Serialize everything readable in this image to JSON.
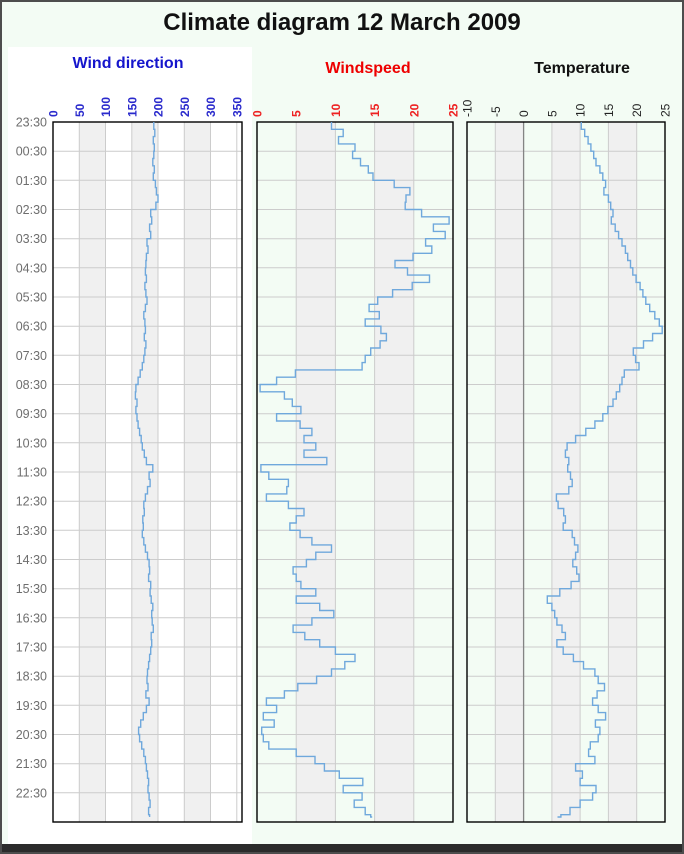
{
  "title": "Climate diagram 12 March 2009",
  "time_axis": {
    "orientation": "vertical-downward",
    "labels": [
      "23:30",
      "00:30",
      "01:30",
      "02:30",
      "03:30",
      "04:30",
      "05:30",
      "06:30",
      "07:30",
      "08:30",
      "09:30",
      "10:30",
      "11:30",
      "12:30",
      "13:30",
      "14:30",
      "15:30",
      "16:30",
      "17:30",
      "18:30",
      "19:30",
      "20:30",
      "21:30",
      "22:30"
    ],
    "values_interval_minutes": 15
  },
  "colors": {
    "line": "#6fa8dc",
    "grid": "#cccccc",
    "band": "#f0f0f0",
    "zero_line": "#848484",
    "time_label": "#6e6e6e",
    "background": "#f3fcf4",
    "panel_backdrop": "#ffffff",
    "frame_border": "#4d4d4d",
    "bottom_bar": "#2b2b2b",
    "plot_border": "#000000"
  },
  "chart_data": [
    {
      "type": "line",
      "style": "step",
      "title": "Wind direction",
      "title_color": "#1515cc",
      "tick_color": "#2a2acc",
      "tick_bold": true,
      "axis_min": 0,
      "axis_max": 360,
      "ticks": [
        0,
        50,
        100,
        150,
        200,
        250,
        300,
        350
      ],
      "values": [
        192,
        194,
        191,
        193,
        192,
        190,
        193,
        191,
        195,
        197,
        200,
        196,
        186,
        188,
        184,
        186,
        179,
        181,
        178,
        177,
        176,
        178,
        175,
        177,
        179,
        176,
        173,
        175,
        176,
        174,
        177,
        175,
        173,
        170,
        166,
        162,
        158,
        157,
        160,
        158,
        160,
        162,
        165,
        168,
        170,
        174,
        178,
        190,
        183,
        185,
        180,
        176,
        173,
        174,
        171,
        172,
        170,
        173,
        176,
        180,
        183,
        184,
        182,
        186,
        185,
        187,
        190,
        188,
        189,
        191,
        187,
        188,
        186,
        184,
        182,
        180,
        179,
        181,
        177,
        183,
        178,
        172,
        167,
        163,
        165,
        169,
        173,
        176,
        178,
        180,
        182,
        181,
        183,
        185,
        182,
        184,
        184
      ]
    },
    {
      "type": "line",
      "style": "step",
      "title": "Windspeed",
      "title_color": "#ee0000",
      "tick_color": "#ee2222",
      "tick_bold": true,
      "axis_min": 0,
      "axis_max": 25,
      "ticks": [
        0,
        5,
        10,
        15,
        20,
        25
      ],
      "values": [
        9.5,
        11,
        10.4,
        12.5,
        12.2,
        13.2,
        14.2,
        14.8,
        17.5,
        19.5,
        19,
        18.9,
        21,
        24.5,
        22.5,
        24,
        21.5,
        22.3,
        19.9,
        17.6,
        19.2,
        22,
        19.8,
        17.3,
        15.4,
        14.3,
        15.6,
        13.8,
        15.8,
        16.5,
        15.7,
        14.5,
        13.8,
        13.4,
        4.9,
        2.5,
        0.4,
        3.5,
        4.5,
        5.6,
        2.5,
        5.5,
        7,
        6,
        7.5,
        6,
        8.9,
        0.5,
        1.5,
        4,
        3.8,
        1.2,
        4,
        6,
        5,
        4.2,
        5.5,
        7,
        9.5,
        7.5,
        6.3,
        4.6,
        5,
        5.6,
        7.5,
        5,
        8,
        9.8,
        7,
        4.6,
        6.1,
        8,
        10,
        12.5,
        11.2,
        9.5,
        7.6,
        5.2,
        3.5,
        1.2,
        2.5,
        0.8,
        2.2,
        0.6,
        0.8,
        1.5,
        5,
        7.4,
        8.6,
        10.5,
        13.5,
        11,
        13.4,
        12.4,
        13.8,
        14.5,
        14.7
      ]
    },
    {
      "type": "line",
      "style": "step",
      "title": "Temperature",
      "title_color": "#111111",
      "tick_color": "#222222",
      "tick_bold": false,
      "zero_line": true,
      "axis_min": -10,
      "axis_max": 25,
      "ticks": [
        -10,
        -5,
        0,
        5,
        10,
        15,
        20,
        25
      ],
      "values": [
        10.2,
        10.8,
        11.4,
        11.9,
        12.4,
        12.8,
        13.5,
        14,
        14.5,
        14.2,
        15,
        15.4,
        15.8,
        15.5,
        16.2,
        16.8,
        17.4,
        18,
        18.4,
        18.9,
        19.3,
        19.9,
        20.6,
        21.1,
        21.6,
        22.3,
        23.2,
        24,
        24.5,
        22.8,
        21.2,
        19.4,
        19.8,
        20.4,
        17.8,
        17.4,
        17,
        16.4,
        15.8,
        14.9,
        14,
        12.6,
        11,
        9.2,
        7.7,
        7.4,
        8,
        7.8,
        8.3,
        8.6,
        8,
        5.8,
        6.1,
        7.1,
        7.4,
        7,
        8.6,
        9,
        9.6,
        9.2,
        8.7,
        9.4,
        9.8,
        8.4,
        6.4,
        4.2,
        5,
        5.5,
        5.9,
        6.8,
        7.4,
        5.9,
        7,
        8.8,
        10.6,
        12.6,
        13.2,
        14.3,
        13,
        12.2,
        13.2,
        14.5,
        12.7,
        13.5,
        13.2,
        11.8,
        11.5,
        12.6,
        9.2,
        10.4,
        10,
        12.8,
        12.2,
        10,
        8.2,
        6.6,
        6
      ]
    }
  ]
}
